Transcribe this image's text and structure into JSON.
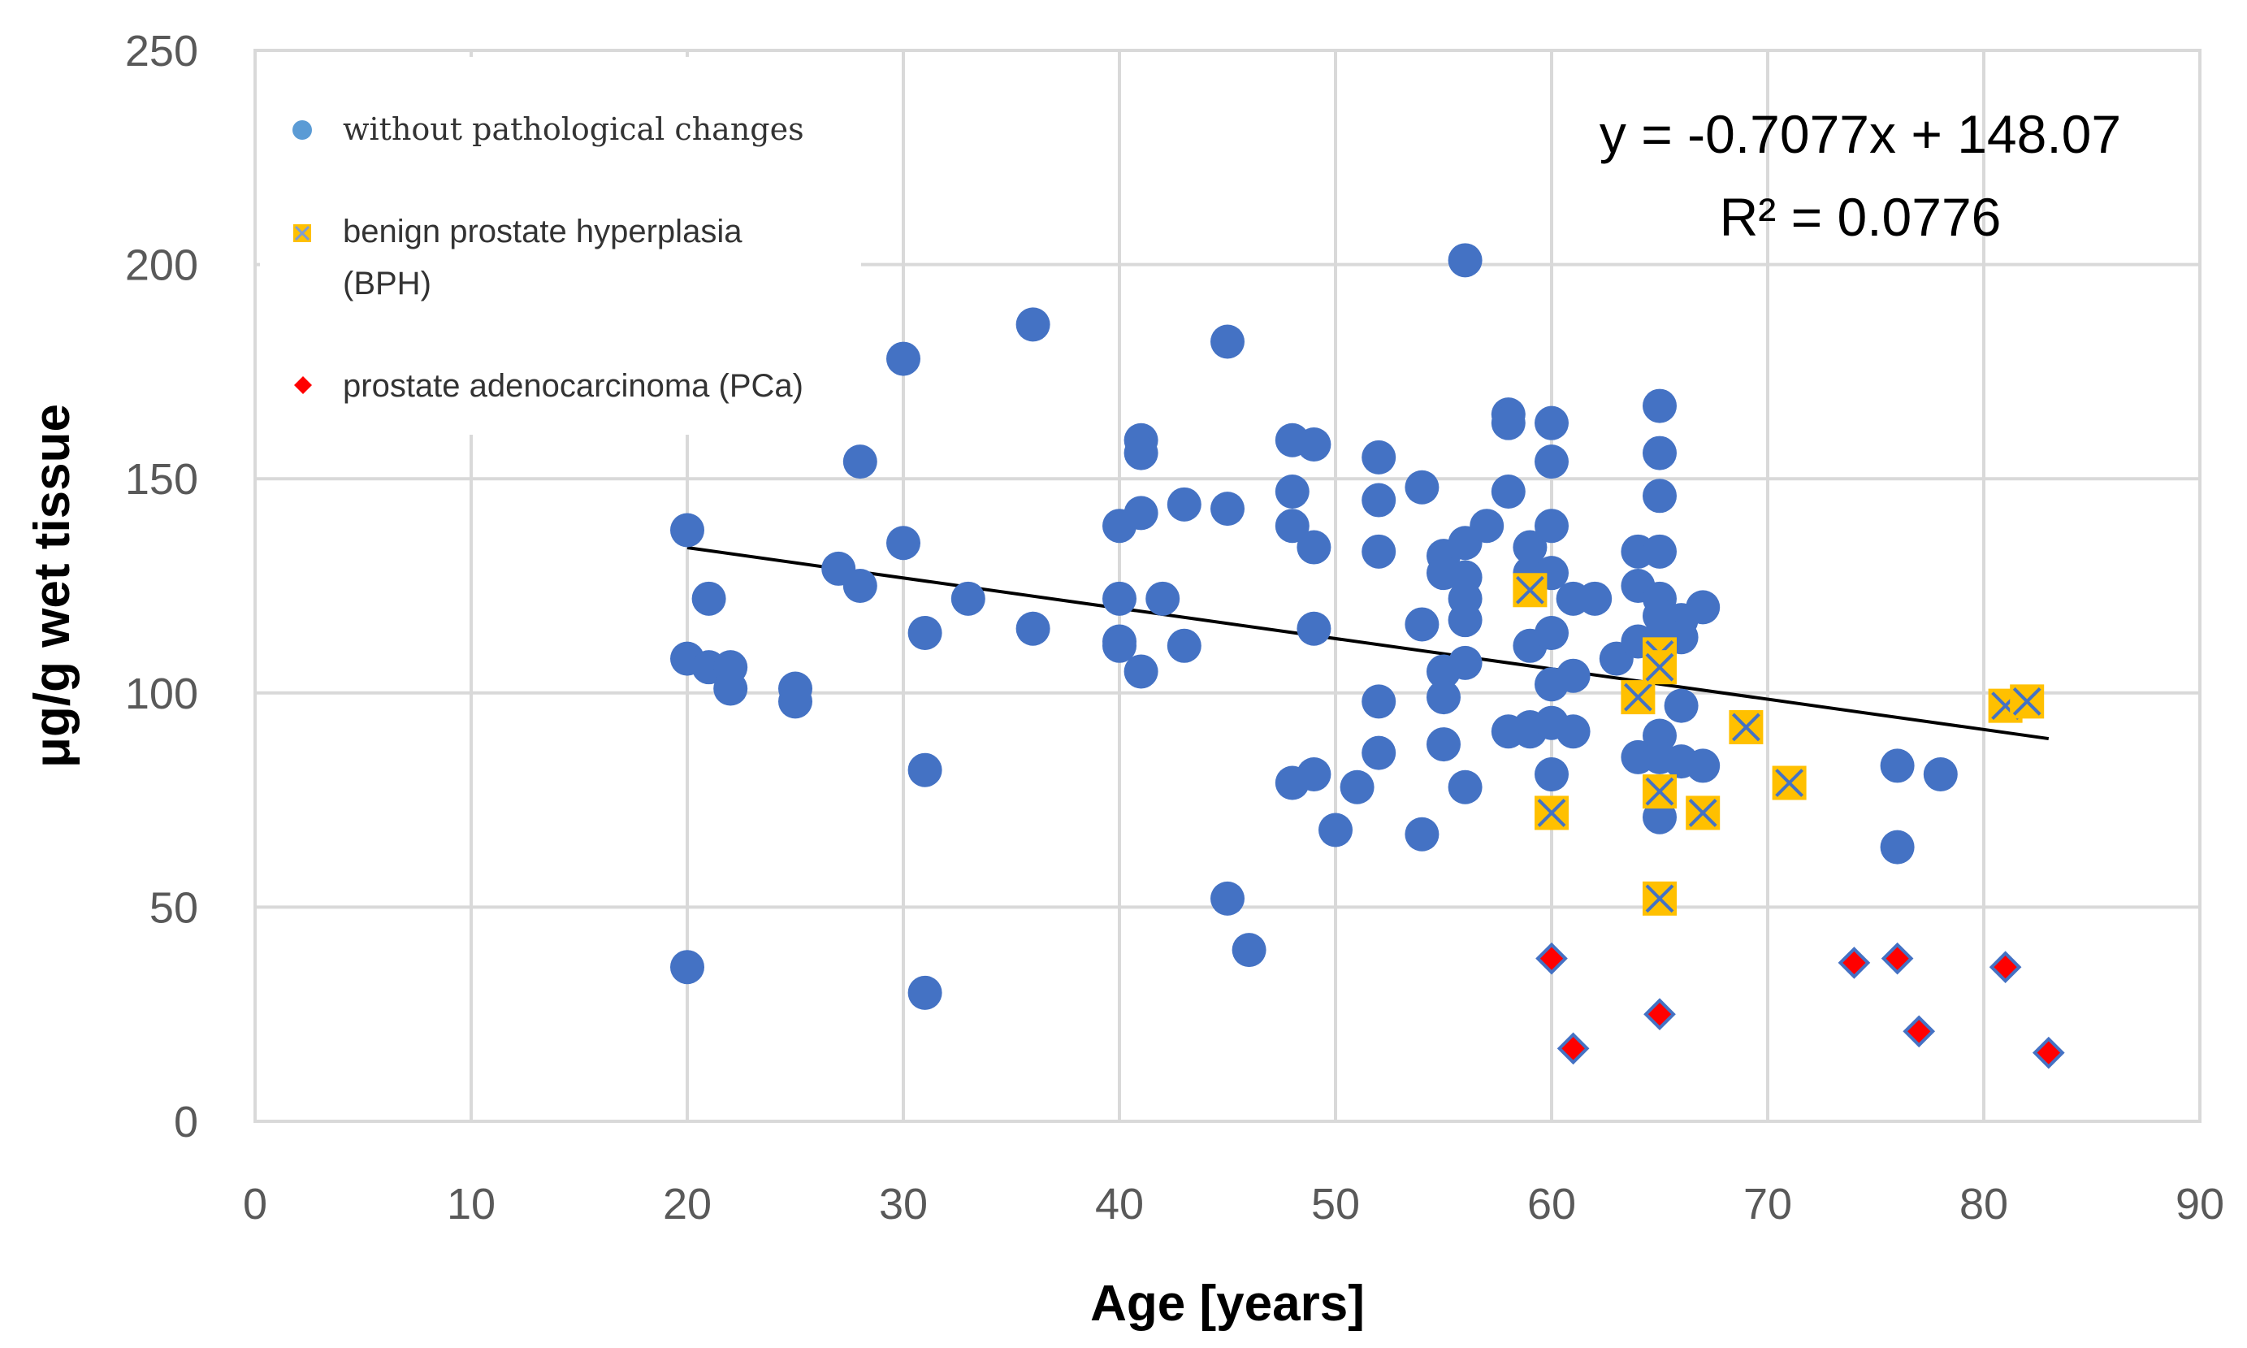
{
  "chart_data": {
    "type": "scatter",
    "title": "",
    "xlabel": "Age [years]",
    "ylabel": "μg/g wet tissue",
    "xlim": [
      0,
      90
    ],
    "ylim": [
      0,
      250
    ],
    "x_ticks": [
      "0",
      "10",
      "20",
      "30",
      "40",
      "50",
      "60",
      "70",
      "80",
      "90"
    ],
    "y_ticks": [
      "0",
      "50",
      "100",
      "150",
      "200",
      "250"
    ],
    "x_tick_values": [
      0,
      10,
      20,
      30,
      40,
      50,
      60,
      70,
      80,
      90
    ],
    "y_tick_values": [
      0,
      50,
      100,
      150,
      200,
      250
    ],
    "grid": true,
    "legend": {
      "placement": "top-left",
      "entries": [
        {
          "label": "without pathological changes",
          "series": "normal"
        },
        {
          "label_line1": "benign prostate hyperplasia",
          "label_line2": "(BPH)",
          "series": "bph"
        },
        {
          "label": "prostate adenocarcinoma (PCa)",
          "series": "pca"
        }
      ]
    },
    "trendline": {
      "slope": -0.7077,
      "intercept": 148.07,
      "x_range": [
        20,
        83
      ],
      "equation": "y = -0.7077x + 148.07",
      "r_squared": "R² = 0.0776",
      "color": "#000000"
    },
    "series": [
      {
        "name": "without pathological changes",
        "key": "normal",
        "marker": "circle",
        "color": "#4472C4",
        "points": [
          [
            20,
            138
          ],
          [
            20,
            108
          ],
          [
            20,
            36
          ],
          [
            21,
            106
          ],
          [
            21,
            122
          ],
          [
            22,
            106
          ],
          [
            22,
            101
          ],
          [
            25,
            101
          ],
          [
            25,
            98
          ],
          [
            27,
            129
          ],
          [
            28,
            154
          ],
          [
            28,
            125
          ],
          [
            30,
            178
          ],
          [
            30,
            135
          ],
          [
            31,
            114
          ],
          [
            31,
            82
          ],
          [
            31,
            30
          ],
          [
            33,
            122
          ],
          [
            36,
            186
          ],
          [
            36,
            115
          ],
          [
            40,
            139
          ],
          [
            40,
            122
          ],
          [
            40,
            112
          ],
          [
            40,
            111
          ],
          [
            41,
            159
          ],
          [
            41,
            156
          ],
          [
            41,
            142
          ],
          [
            41,
            105
          ],
          [
            42,
            122
          ],
          [
            43,
            144
          ],
          [
            43,
            111
          ],
          [
            45,
            182
          ],
          [
            45,
            143
          ],
          [
            45,
            52
          ],
          [
            46,
            40
          ],
          [
            48,
            159
          ],
          [
            48,
            147
          ],
          [
            48,
            139
          ],
          [
            48,
            79
          ],
          [
            49,
            158
          ],
          [
            49,
            134
          ],
          [
            49,
            115
          ],
          [
            49,
            81
          ],
          [
            50,
            68
          ],
          [
            51,
            78
          ],
          [
            52,
            155
          ],
          [
            52,
            145
          ],
          [
            52,
            133
          ],
          [
            52,
            98
          ],
          [
            52,
            86
          ],
          [
            54,
            148
          ],
          [
            54,
            116
          ],
          [
            54,
            67
          ],
          [
            55,
            132
          ],
          [
            55,
            128
          ],
          [
            55,
            105
          ],
          [
            55,
            99
          ],
          [
            55,
            88
          ],
          [
            56,
            201
          ],
          [
            56,
            135
          ],
          [
            56,
            127
          ],
          [
            56,
            122
          ],
          [
            56,
            117
          ],
          [
            56,
            107
          ],
          [
            56,
            78
          ],
          [
            57,
            139
          ],
          [
            58,
            165
          ],
          [
            58,
            163
          ],
          [
            58,
            147
          ],
          [
            58,
            91
          ],
          [
            59,
            134
          ],
          [
            59,
            128
          ],
          [
            59,
            111
          ],
          [
            59,
            92
          ],
          [
            59,
            91
          ],
          [
            60,
            163
          ],
          [
            60,
            154
          ],
          [
            60,
            139
          ],
          [
            60,
            128
          ],
          [
            60,
            114
          ],
          [
            60,
            102
          ],
          [
            60,
            93
          ],
          [
            60,
            81
          ],
          [
            61,
            122
          ],
          [
            61,
            104
          ],
          [
            61,
            91
          ],
          [
            62,
            122
          ],
          [
            63,
            108
          ],
          [
            64,
            133
          ],
          [
            64,
            125
          ],
          [
            64,
            112
          ],
          [
            64,
            85
          ],
          [
            65,
            167
          ],
          [
            65,
            156
          ],
          [
            65,
            146
          ],
          [
            65,
            133
          ],
          [
            65,
            122
          ],
          [
            65,
            118
          ],
          [
            65,
            113
          ],
          [
            65,
            90
          ],
          [
            65,
            85
          ],
          [
            65,
            71
          ],
          [
            66,
            117
          ],
          [
            66,
            113
          ],
          [
            66,
            97
          ],
          [
            66,
            84
          ],
          [
            67,
            120
          ],
          [
            67,
            83
          ],
          [
            76,
            83
          ],
          [
            76,
            64
          ],
          [
            78,
            81
          ]
        ]
      },
      {
        "name": "benign prostate hyperplasia (BPH)",
        "key": "bph",
        "marker": "square-x",
        "color": "#FFC000",
        "edge_color": "#4472C4",
        "points": [
          [
            59,
            124
          ],
          [
            60,
            72
          ],
          [
            64,
            99
          ],
          [
            65,
            109
          ],
          [
            65,
            106
          ],
          [
            65,
            77
          ],
          [
            65,
            52
          ],
          [
            67,
            72
          ],
          [
            69,
            92
          ],
          [
            71,
            79
          ],
          [
            81,
            97
          ],
          [
            82,
            98
          ]
        ]
      },
      {
        "name": "prostate adenocarcinoma (PCa)",
        "key": "pca",
        "marker": "diamond",
        "color": "#FF0000",
        "edge_color": "#4472C4",
        "points": [
          [
            60,
            38
          ],
          [
            61,
            17
          ],
          [
            65,
            25
          ],
          [
            74,
            37
          ],
          [
            76,
            38
          ],
          [
            77,
            21
          ],
          [
            81,
            36
          ],
          [
            83,
            16
          ]
        ]
      }
    ]
  }
}
